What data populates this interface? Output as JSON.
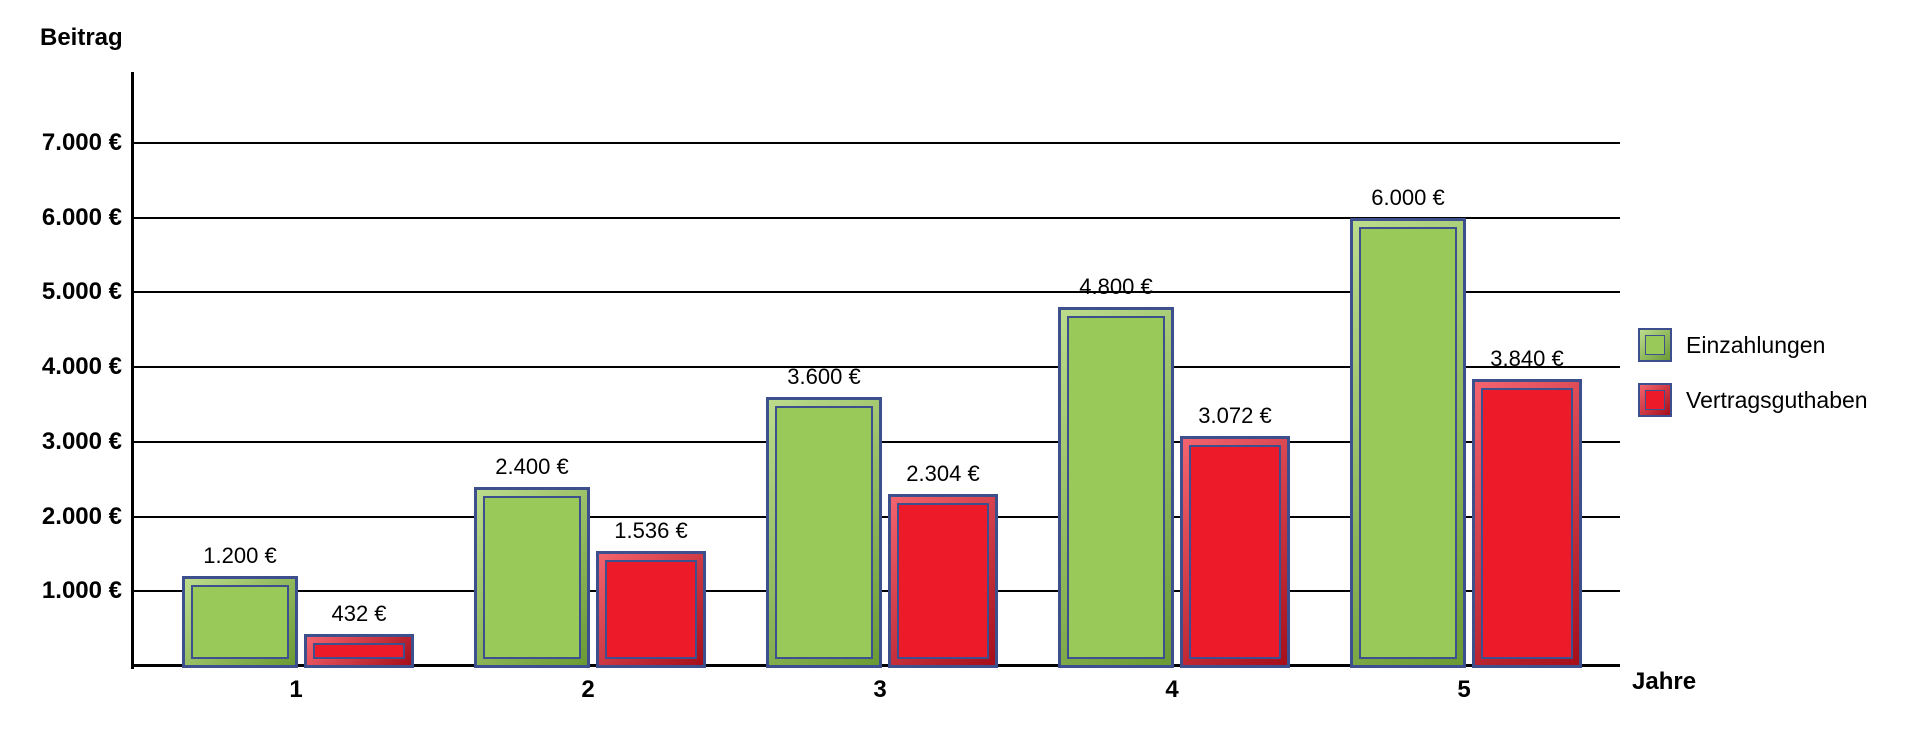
{
  "chart_data": {
    "type": "bar",
    "title": "",
    "ylabel": "Beitrag",
    "xlabel": "Jahre",
    "categories": [
      "1",
      "2",
      "3",
      "4",
      "5"
    ],
    "series": [
      {
        "name": "Einzahlungen",
        "face_color": "#99C958",
        "edge_light": "#BCDC8C",
        "edge_dark": "#6B9A34",
        "values": [
          1200,
          2400,
          3600,
          4800,
          6000
        ],
        "value_labels": [
          "1.200 €",
          "2.400 €",
          "3.600 €",
          "4.800 €",
          "6.000 €"
        ]
      },
      {
        "name": "Vertragsguthaben",
        "face_color": "#ED1B2A",
        "edge_light": "#F4646E",
        "edge_dark": "#A60E1A",
        "values": [
          432,
          1536,
          2304,
          3072,
          3840
        ],
        "value_labels": [
          "432 €",
          "1.536 €",
          "2.304 €",
          "3.072 €",
          "3.840 €"
        ]
      }
    ],
    "yticks": [
      {
        "value": 7000,
        "label": "7.000 €"
      },
      {
        "value": 6000,
        "label": "6.000 €"
      },
      {
        "value": 5000,
        "label": "5.000 €"
      },
      {
        "value": 4000,
        "label": "4.000 €"
      },
      {
        "value": 3000,
        "label": "3.000 €"
      },
      {
        "value": 2000,
        "label": "2.000 €"
      },
      {
        "value": 1000,
        "label": "1.000 €"
      }
    ],
    "ylim": [
      0,
      7500
    ],
    "grid": "horizontal",
    "legend_position": "right",
    "border_color": "#3D4F8C",
    "background": "#FFFFFF"
  }
}
